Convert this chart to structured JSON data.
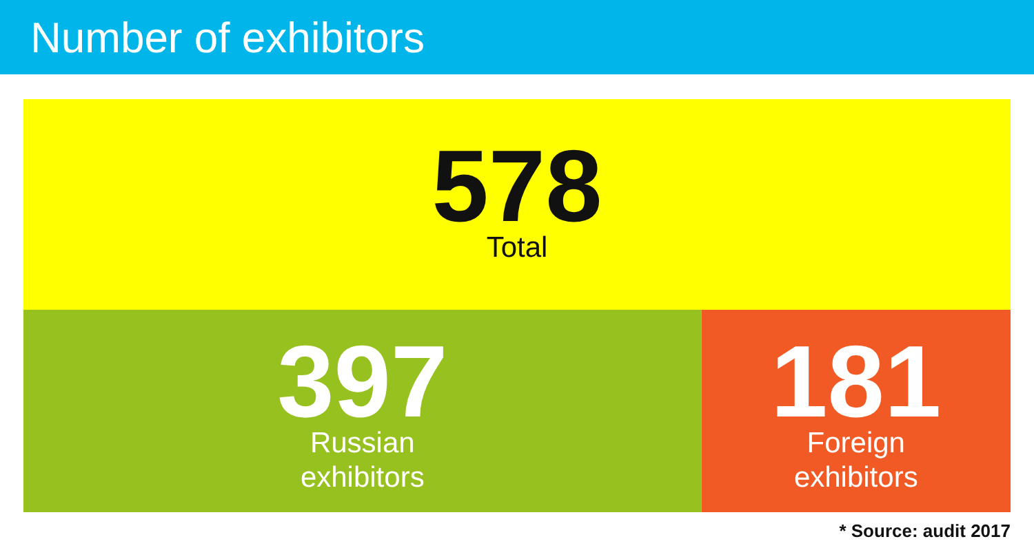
{
  "chart_data": {
    "type": "other",
    "title": "Number of exhibitors",
    "categories": [
      "Total",
      "Russian exhibitors",
      "Foreign exhibitors"
    ],
    "values": [
      578,
      397,
      181
    ],
    "data_labels": true,
    "colors": [
      "#ffff00",
      "#96c11f",
      "#f15a24"
    ],
    "annotations": [
      "* Source: audit 2017"
    ]
  }
}
